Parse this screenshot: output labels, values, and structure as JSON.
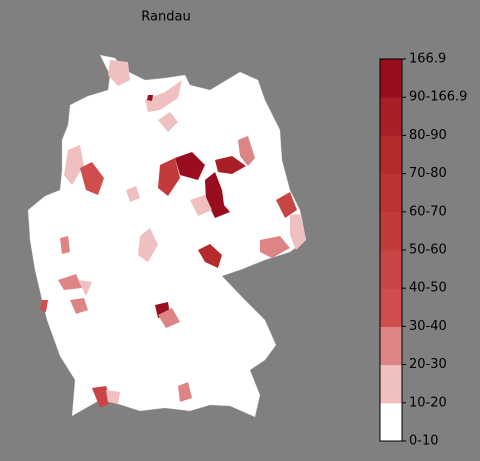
{
  "title": "Randau",
  "colorbar": {
    "ticks": [
      "0-10",
      "10-20",
      "20-30",
      "30-40",
      "40-50",
      "50-60",
      "60-70",
      "70-80",
      "80-90",
      "90-166.9",
      "166.9"
    ],
    "colors": [
      "#ffffff",
      "#f0c0c0",
      "#dd8585",
      "#cf4d4d",
      "#c94444",
      "#c33a3a",
      "#bd3232",
      "#b52a2a",
      "#aa1e28",
      "#9a0d1e"
    ]
  }
}
